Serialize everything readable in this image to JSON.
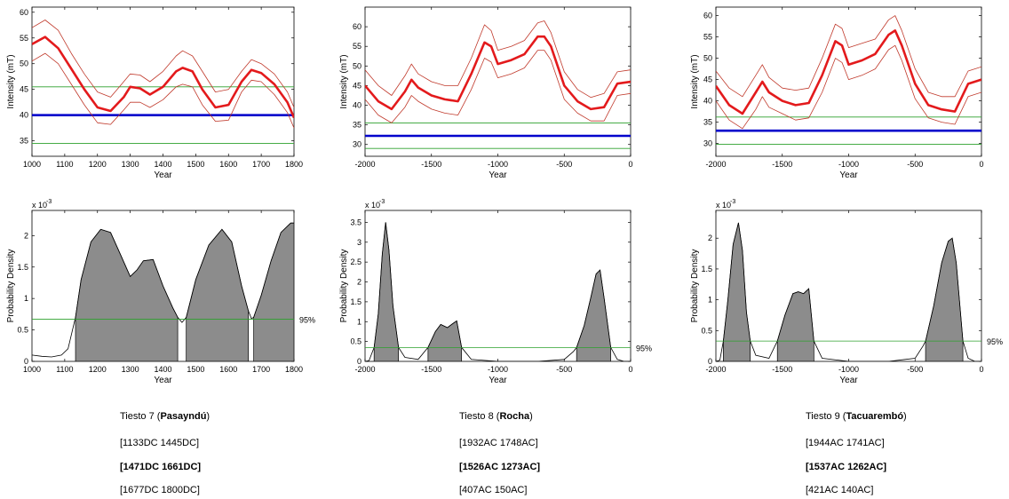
{
  "colors": {
    "mean_curve": "#e31a1c",
    "envelope": "#c0392b",
    "reference_line": "#0000cc",
    "confidence_line": "#2ca02c",
    "density_fill": "#8c8c8c",
    "axis": "#000000"
  },
  "chart_data": [
    {
      "type": "line",
      "name": "intensity-tiesto7",
      "xlabel": "Year",
      "ylabel": "Intensity (mT)",
      "xlim": [
        1000,
        1800
      ],
      "ylim": [
        32,
        61
      ],
      "xticks": [
        1000,
        1100,
        1200,
        1300,
        1400,
        1500,
        1600,
        1700,
        1800
      ],
      "yticks": [
        35,
        40,
        45,
        50,
        55,
        60
      ],
      "series": [
        {
          "name": "mean",
          "x": [
            1000,
            1040,
            1080,
            1120,
            1160,
            1200,
            1240,
            1280,
            1300,
            1330,
            1360,
            1400,
            1440,
            1460,
            1490,
            1520,
            1560,
            1600,
            1640,
            1670,
            1700,
            1740,
            1780,
            1800
          ],
          "values": [
            53.8,
            55.2,
            53,
            49,
            45,
            41.5,
            40.8,
            43.5,
            45.5,
            45.2,
            44,
            45.5,
            48.5,
            49.2,
            48.5,
            45,
            41.5,
            42,
            46.5,
            48.8,
            48.2,
            46,
            42.5,
            39.5
          ]
        },
        {
          "name": "upper",
          "x": [
            1000,
            1040,
            1080,
            1120,
            1160,
            1200,
            1240,
            1280,
            1300,
            1330,
            1360,
            1400,
            1440,
            1460,
            1490,
            1520,
            1560,
            1600,
            1640,
            1670,
            1700,
            1740,
            1780,
            1800
          ],
          "values": [
            57,
            58.5,
            56.5,
            52,
            48,
            44.5,
            43.5,
            46.5,
            48,
            47.8,
            46.5,
            48.5,
            51.5,
            52.5,
            51.5,
            48.5,
            44.5,
            45,
            48.5,
            50.8,
            50,
            48,
            44.5,
            41.5
          ]
        },
        {
          "name": "lower",
          "x": [
            1000,
            1040,
            1080,
            1120,
            1160,
            1200,
            1240,
            1280,
            1300,
            1330,
            1360,
            1400,
            1440,
            1460,
            1490,
            1520,
            1560,
            1600,
            1640,
            1670,
            1700,
            1740,
            1780,
            1800
          ],
          "values": [
            50.5,
            52,
            50,
            46,
            42,
            38.5,
            38.2,
            41,
            42.5,
            42.5,
            41.5,
            43,
            45.5,
            46,
            45.5,
            42,
            38.8,
            39,
            44.5,
            46.8,
            46.5,
            44,
            40.5,
            37.5
          ]
        }
      ],
      "hlines": [
        {
          "name": "reference",
          "value": 40.0
        },
        {
          "name": "upper-bound",
          "value": 45.5
        },
        {
          "name": "lower-bound",
          "value": 34.5
        }
      ]
    },
    {
      "type": "line",
      "name": "intensity-tiesto8",
      "xlabel": "Year",
      "ylabel": "Intensity (mT)",
      "xlim": [
        -2000,
        0
      ],
      "ylim": [
        27,
        65
      ],
      "xticks": [
        -2000,
        -1500,
        -1000,
        -500,
        0
      ],
      "yticks": [
        30,
        35,
        40,
        45,
        50,
        55,
        60
      ],
      "series": [
        {
          "name": "mean",
          "x": [
            -2000,
            -1900,
            -1800,
            -1700,
            -1650,
            -1600,
            -1500,
            -1400,
            -1300,
            -1200,
            -1100,
            -1050,
            -1000,
            -900,
            -800,
            -700,
            -650,
            -600,
            -500,
            -400,
            -300,
            -200,
            -100,
            0
          ],
          "values": [
            45,
            41,
            39,
            43.5,
            46.5,
            44.5,
            42.5,
            41.5,
            41,
            48,
            56,
            55,
            50.5,
            51.5,
            53,
            57.5,
            57.5,
            55,
            45,
            41,
            39,
            39.5,
            45.5,
            46
          ]
        },
        {
          "name": "upper",
          "x": [
            -2000,
            -1900,
            -1800,
            -1700,
            -1650,
            -1600,
            -1500,
            -1400,
            -1300,
            -1200,
            -1100,
            -1050,
            -1000,
            -900,
            -800,
            -700,
            -650,
            -600,
            -500,
            -400,
            -300,
            -200,
            -100,
            0
          ],
          "values": [
            49,
            45,
            42.5,
            47.5,
            50.5,
            48,
            46,
            45,
            45,
            52,
            60.5,
            59,
            54,
            55,
            56.5,
            61,
            61.5,
            58.5,
            48.5,
            44,
            42,
            43,
            48.5,
            49
          ]
        },
        {
          "name": "lower",
          "x": [
            -2000,
            -1900,
            -1800,
            -1700,
            -1650,
            -1600,
            -1500,
            -1400,
            -1300,
            -1200,
            -1100,
            -1050,
            -1000,
            -900,
            -800,
            -700,
            -650,
            -600,
            -500,
            -400,
            -300,
            -200,
            -100,
            0
          ],
          "values": [
            41.5,
            37.5,
            35.5,
            39.5,
            42.5,
            41,
            39,
            38,
            37.5,
            44,
            52,
            51,
            47,
            48,
            49.5,
            54,
            54,
            51.5,
            41.5,
            38,
            36,
            36,
            42.5,
            43
          ]
        }
      ],
      "hlines": [
        {
          "name": "reference",
          "value": 32.2
        },
        {
          "name": "upper-bound",
          "value": 35.5
        },
        {
          "name": "lower-bound",
          "value": 29.0
        }
      ]
    },
    {
      "type": "line",
      "name": "intensity-tiesto9",
      "xlabel": "Year",
      "ylabel": "Intensity (mT)",
      "xlim": [
        -2000,
        0
      ],
      "ylim": [
        27,
        62
      ],
      "xticks": [
        -2000,
        -1500,
        -1000,
        -500,
        0
      ],
      "yticks": [
        30,
        35,
        40,
        45,
        50,
        55,
        60
      ],
      "series": [
        {
          "name": "mean",
          "x": [
            -2000,
            -1900,
            -1800,
            -1700,
            -1650,
            -1600,
            -1500,
            -1400,
            -1300,
            -1200,
            -1100,
            -1050,
            -1000,
            -900,
            -800,
            -700,
            -650,
            -600,
            -500,
            -400,
            -300,
            -200,
            -100,
            0
          ],
          "values": [
            43.5,
            39,
            37,
            42,
            44.5,
            42,
            40,
            39,
            39.5,
            46,
            54,
            53,
            48.5,
            49.5,
            51,
            55.5,
            56.5,
            53,
            44,
            39,
            38,
            37.5,
            44,
            45
          ]
        },
        {
          "name": "upper",
          "x": [
            -2000,
            -1900,
            -1800,
            -1700,
            -1650,
            -1600,
            -1500,
            -1400,
            -1300,
            -1200,
            -1100,
            -1050,
            -1000,
            -900,
            -800,
            -700,
            -650,
            -600,
            -500,
            -400,
            -300,
            -200,
            -100,
            0
          ],
          "values": [
            47,
            43,
            41,
            46,
            48.5,
            45.5,
            43,
            42.5,
            43,
            50,
            58,
            57,
            52.5,
            53.5,
            54.5,
            59,
            60,
            56.5,
            47.5,
            42,
            41,
            41,
            47,
            48
          ]
        },
        {
          "name": "lower",
          "x": [
            -2000,
            -1900,
            -1800,
            -1700,
            -1650,
            -1600,
            -1500,
            -1400,
            -1300,
            -1200,
            -1100,
            -1050,
            -1000,
            -900,
            -800,
            -700,
            -650,
            -600,
            -500,
            -400,
            -300,
            -200,
            -100,
            0
          ],
          "values": [
            40,
            35.5,
            33.5,
            38,
            41,
            38.5,
            37,
            35.5,
            36,
            42,
            50,
            49,
            45,
            46,
            47.5,
            52,
            53,
            49.5,
            40.5,
            36,
            35,
            34.5,
            41,
            42
          ]
        }
      ],
      "hlines": [
        {
          "name": "reference",
          "value": 33.0
        },
        {
          "name": "upper-bound",
          "value": 36.2
        },
        {
          "name": "lower-bound",
          "value": 29.8
        }
      ]
    },
    {
      "type": "area",
      "name": "density-tiesto7",
      "xlabel": "Year",
      "ylabel": "Probability Density",
      "yscale_label": "x 10",
      "yscale_exponent": "-3",
      "xlim": [
        1000,
        1800
      ],
      "ylim": [
        0,
        2.4
      ],
      "xticks": [
        1000,
        1100,
        1200,
        1300,
        1400,
        1500,
        1600,
        1700,
        1800
      ],
      "yticks": [
        0,
        0.5,
        1,
        1.5,
        2
      ],
      "series": [
        {
          "name": "density",
          "x": [
            1000,
            1030,
            1060,
            1090,
            1110,
            1133,
            1150,
            1180,
            1210,
            1240,
            1270,
            1300,
            1320,
            1340,
            1370,
            1400,
            1430,
            1445,
            1458,
            1471,
            1500,
            1540,
            1580,
            1610,
            1640,
            1661,
            1670,
            1677,
            1700,
            1730,
            1760,
            1790,
            1800
          ],
          "values": [
            0.1,
            0.08,
            0.07,
            0.1,
            0.2,
            0.7,
            1.3,
            1.9,
            2.1,
            2.05,
            1.7,
            1.35,
            1.45,
            1.6,
            1.62,
            1.2,
            0.85,
            0.7,
            0.62,
            0.7,
            1.3,
            1.85,
            2.1,
            1.9,
            1.2,
            0.8,
            0.68,
            0.7,
            1.05,
            1.6,
            2.05,
            2.2,
            2.2
          ]
        }
      ],
      "hpd_intervals": [
        [
          1133,
          1445
        ],
        [
          1471,
          1661
        ],
        [
          1677,
          1800
        ]
      ],
      "threshold_value": 0.67,
      "threshold_label": "95%"
    },
    {
      "type": "area",
      "name": "density-tiesto8",
      "xlabel": "Year",
      "ylabel": "Probability Density",
      "yscale_label": "x 10",
      "yscale_exponent": "-3",
      "xlim": [
        -2000,
        0
      ],
      "ylim": [
        0,
        3.8
      ],
      "xticks": [
        -2000,
        -1500,
        -1000,
        -500,
        0
      ],
      "yticks": [
        0,
        0.5,
        1,
        1.5,
        2,
        2.5,
        3,
        3.5
      ],
      "series": [
        {
          "name": "density",
          "x": [
            -2000,
            -1970,
            -1932,
            -1900,
            -1870,
            -1845,
            -1820,
            -1790,
            -1748,
            -1700,
            -1600,
            -1526,
            -1470,
            -1430,
            -1380,
            -1340,
            -1310,
            -1273,
            -1200,
            -1000,
            -700,
            -500,
            -430,
            -407,
            -350,
            -300,
            -260,
            -230,
            -200,
            -150,
            -100,
            -50,
            0
          ],
          "values": [
            0,
            0.02,
            0.35,
            1.2,
            2.7,
            3.5,
            2.8,
            1.4,
            0.35,
            0.1,
            0.05,
            0.35,
            0.75,
            0.93,
            0.85,
            0.95,
            1.02,
            0.35,
            0.05,
            0,
            0,
            0.05,
            0.25,
            0.35,
            0.9,
            1.6,
            2.2,
            2.3,
            1.6,
            0.35,
            0.05,
            0,
            0
          ]
        }
      ],
      "hpd_intervals": [
        [
          -1932,
          -1748
        ],
        [
          -1526,
          -1273
        ],
        [
          -407,
          -150
        ]
      ],
      "threshold_value": 0.35,
      "threshold_label": "95%"
    },
    {
      "type": "area",
      "name": "density-tiesto9",
      "xlabel": "Year",
      "ylabel": "Probability Density",
      "yscale_label": "x 10",
      "yscale_exponent": "-3",
      "xlim": [
        -2000,
        0
      ],
      "ylim": [
        0,
        2.45
      ],
      "xticks": [
        -2000,
        -1500,
        -1000,
        -500,
        0
      ],
      "yticks": [
        0,
        0.5,
        1,
        1.5,
        2
      ],
      "series": [
        {
          "name": "density",
          "x": [
            -2000,
            -1970,
            -1944,
            -1910,
            -1870,
            -1830,
            -1800,
            -1770,
            -1741,
            -1700,
            -1600,
            -1537,
            -1480,
            -1420,
            -1380,
            -1340,
            -1300,
            -1262,
            -1200,
            -1000,
            -700,
            -500,
            -440,
            -421,
            -360,
            -300,
            -250,
            -220,
            -190,
            -140,
            -100,
            -50,
            0
          ],
          "values": [
            0,
            0.02,
            0.33,
            1.0,
            1.9,
            2.25,
            1.8,
            0.8,
            0.33,
            0.1,
            0.05,
            0.33,
            0.75,
            1.1,
            1.13,
            1.1,
            1.18,
            0.33,
            0.05,
            0,
            0,
            0.05,
            0.25,
            0.33,
            0.9,
            1.6,
            1.95,
            2.0,
            1.6,
            0.33,
            0.05,
            0,
            0
          ]
        }
      ],
      "hpd_intervals": [
        [
          -1944,
          -1741
        ],
        [
          -1537,
          -1262
        ],
        [
          -421,
          -140
        ]
      ],
      "threshold_value": 0.33,
      "threshold_label": "95%"
    }
  ],
  "captions": [
    {
      "prefix": "Tiesto 7 (",
      "site": "Pasayndú",
      "suffix": ")",
      "range1": "[1133DC 1445DC]",
      "range2": "[1471DC 1661DC]",
      "range3": "[1677DC   1800DC]"
    },
    {
      "prefix": "Tiesto 8 (",
      "site": "Rocha",
      "suffix": ")",
      "range1": "[1932AC 1748AC]",
      "range2": "[1526AC 1273AC]",
      "range3": "[407AC   150AC]"
    },
    {
      "prefix": "Tiesto 9 (",
      "site": "Tacuarembó",
      "suffix": ")",
      "range1": "[1944AC 1741AC]",
      "range2": "[1537AC 1262AC]",
      "range3": "[421AC   140AC]"
    }
  ]
}
